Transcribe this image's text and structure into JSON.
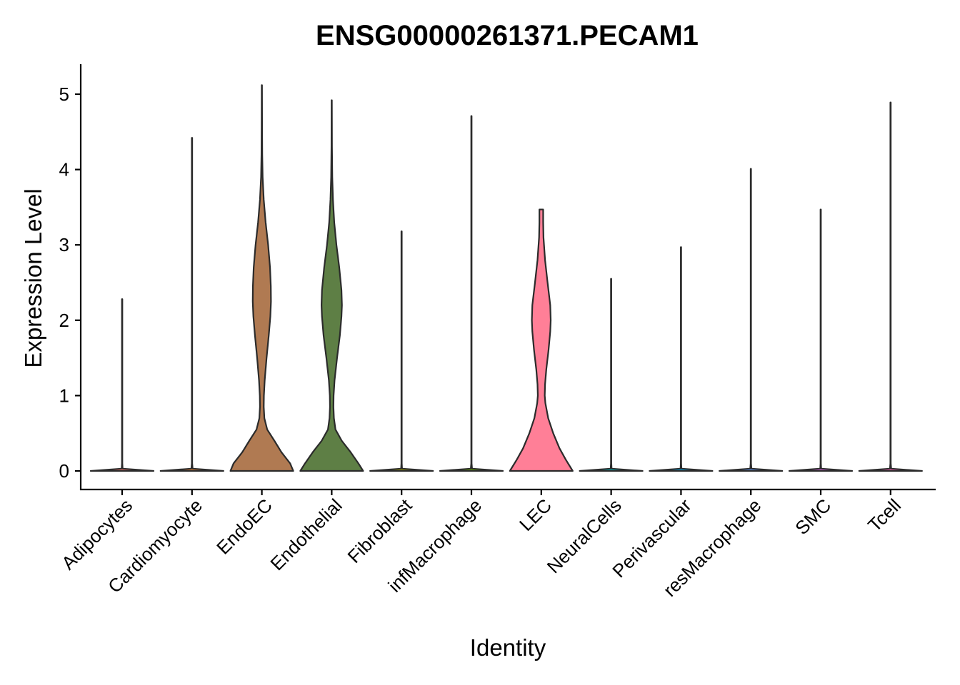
{
  "chart_data": {
    "type": "violin",
    "title": "ENSG00000261371.PECAM1",
    "xlabel": "Identity",
    "ylabel": "Expression Level",
    "ylim": [
      -0.25,
      5.4
    ],
    "yticks": [
      0,
      1,
      2,
      3,
      4,
      5
    ],
    "grid": false,
    "legend": "none",
    "categories": [
      "Adipocytes",
      "Cardiomyocyte",
      "EndoEC",
      "Endothelial",
      "Fibroblast",
      "infMacrophage",
      "LEC",
      "NeuralCells",
      "Perivascular",
      "resMacrophage",
      "SMC",
      "Tcell"
    ],
    "series": [
      {
        "category": "Adipocytes",
        "color": "#f8766d",
        "max": 2.28,
        "profile": [
          [
            0,
            1
          ],
          [
            0.03,
            0.015
          ],
          [
            0.1,
            0.006
          ],
          [
            2.28,
            0.006
          ]
        ]
      },
      {
        "category": "Cardiomyocyte",
        "color": "#ea8331",
        "max": 4.42,
        "profile": [
          [
            0,
            1
          ],
          [
            0.03,
            0.02
          ],
          [
            0.1,
            0.006
          ],
          [
            4.42,
            0.006
          ]
        ]
      },
      {
        "category": "EndoEC",
        "color": "#b07a52",
        "max": 5.12,
        "profile": [
          [
            0,
            1
          ],
          [
            0.1,
            0.9
          ],
          [
            0.25,
            0.62
          ],
          [
            0.4,
            0.4
          ],
          [
            0.55,
            0.17
          ],
          [
            0.7,
            0.08
          ],
          [
            0.85,
            0.06
          ],
          [
            1.0,
            0.065
          ],
          [
            1.2,
            0.09
          ],
          [
            1.5,
            0.15
          ],
          [
            1.8,
            0.22
          ],
          [
            2.05,
            0.27
          ],
          [
            2.25,
            0.29
          ],
          [
            2.45,
            0.285
          ],
          [
            2.7,
            0.26
          ],
          [
            3.0,
            0.2
          ],
          [
            3.3,
            0.12
          ],
          [
            3.6,
            0.06
          ],
          [
            3.9,
            0.025
          ],
          [
            4.2,
            0.012
          ],
          [
            4.6,
            0.007
          ],
          [
            5.12,
            0.004
          ]
        ]
      },
      {
        "category": "Endothelial",
        "color": "#5e7f45",
        "max": 4.92,
        "profile": [
          [
            0,
            1
          ],
          [
            0.1,
            0.85
          ],
          [
            0.25,
            0.6
          ],
          [
            0.4,
            0.32
          ],
          [
            0.55,
            0.12
          ],
          [
            0.7,
            0.07
          ],
          [
            0.85,
            0.055
          ],
          [
            1.0,
            0.06
          ],
          [
            1.2,
            0.09
          ],
          [
            1.5,
            0.17
          ],
          [
            1.8,
            0.26
          ],
          [
            2.05,
            0.31
          ],
          [
            2.2,
            0.325
          ],
          [
            2.4,
            0.31
          ],
          [
            2.7,
            0.24
          ],
          [
            3.0,
            0.15
          ],
          [
            3.3,
            0.08
          ],
          [
            3.6,
            0.04
          ],
          [
            3.9,
            0.018
          ],
          [
            4.3,
            0.008
          ],
          [
            4.92,
            0.004
          ]
        ]
      },
      {
        "category": "Fibroblast",
        "color": "#a3a500",
        "max": 3.18,
        "profile": [
          [
            0,
            1
          ],
          [
            0.03,
            0.015
          ],
          [
            0.1,
            0.006
          ],
          [
            3.18,
            0.006
          ]
        ]
      },
      {
        "category": "infMacrophage",
        "color": "#6bb100",
        "max": 4.71,
        "profile": [
          [
            0,
            1
          ],
          [
            0.03,
            0.02
          ],
          [
            0.1,
            0.006
          ],
          [
            4.71,
            0.006
          ]
        ]
      },
      {
        "category": "LEC",
        "color": "#ff7f97",
        "max": 3.47,
        "profile": [
          [
            0,
            1
          ],
          [
            0.15,
            0.78
          ],
          [
            0.3,
            0.58
          ],
          [
            0.5,
            0.38
          ],
          [
            0.7,
            0.22
          ],
          [
            0.9,
            0.13
          ],
          [
            1.0,
            0.11
          ],
          [
            1.15,
            0.12
          ],
          [
            1.35,
            0.16
          ],
          [
            1.6,
            0.23
          ],
          [
            1.85,
            0.285
          ],
          [
            2.0,
            0.3
          ],
          [
            2.2,
            0.285
          ],
          [
            2.5,
            0.2
          ],
          [
            2.8,
            0.12
          ],
          [
            3.1,
            0.07
          ],
          [
            3.3,
            0.06
          ],
          [
            3.47,
            0.06
          ]
        ]
      },
      {
        "category": "NeuralCells",
        "color": "#00bfc4",
        "max": 2.55,
        "profile": [
          [
            0,
            1
          ],
          [
            0.03,
            0.015
          ],
          [
            0.1,
            0.006
          ],
          [
            2.55,
            0.006
          ]
        ]
      },
      {
        "category": "Perivascular",
        "color": "#00b0f6",
        "max": 2.97,
        "profile": [
          [
            0,
            1
          ],
          [
            0.03,
            0.015
          ],
          [
            0.1,
            0.006
          ],
          [
            2.97,
            0.006
          ]
        ]
      },
      {
        "category": "resMacrophage",
        "color": "#619cff",
        "max": 4.01,
        "profile": [
          [
            0,
            1
          ],
          [
            0.03,
            0.02
          ],
          [
            0.1,
            0.006
          ],
          [
            4.01,
            0.006
          ]
        ]
      },
      {
        "category": "SMC",
        "color": "#e76bf3",
        "max": 3.47,
        "profile": [
          [
            0,
            1
          ],
          [
            0.03,
            0.015
          ],
          [
            0.1,
            0.006
          ],
          [
            3.47,
            0.006
          ]
        ]
      },
      {
        "category": "Tcell",
        "color": "#ff62bc",
        "max": 4.89,
        "profile": [
          [
            0,
            1
          ],
          [
            0.03,
            0.02
          ],
          [
            0.1,
            0.006
          ],
          [
            4.89,
            0.006
          ]
        ]
      }
    ]
  }
}
